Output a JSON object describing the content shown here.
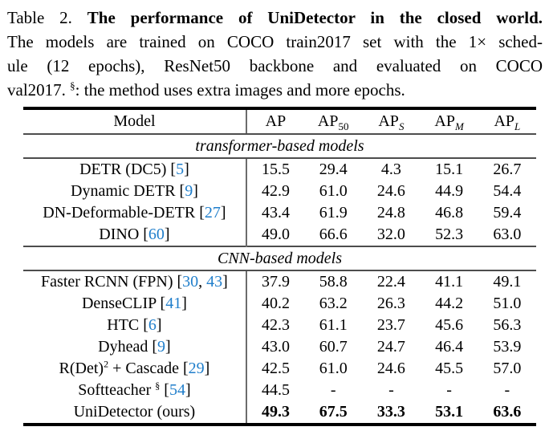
{
  "caption": {
    "label": "Table 2.",
    "title": "The performance of UniDetector in the closed world.",
    "line2": "The models are trained on COCO train2017 set with the 1× sched-",
    "line3": "ule (12 epochs), ResNet50 backbone and evaluated on COCO",
    "line4": {
      "pre": "val2017. ",
      "sup": "§",
      "post": ": the method uses extra images and more epochs."
    }
  },
  "colors": {
    "citation_link": "#1f7ecb",
    "text": "#000000"
  },
  "table": {
    "headers": [
      {
        "base": "Model",
        "sub": ""
      },
      {
        "base": "AP",
        "sub": ""
      },
      {
        "base": "AP",
        "sub": "50"
      },
      {
        "base": "AP",
        "sub": "S"
      },
      {
        "base": "AP",
        "sub": "M"
      },
      {
        "base": "AP",
        "sub": "L"
      }
    ],
    "sections": [
      {
        "title": "transformer-based models",
        "rows": [
          {
            "model": [
              {
                "t": "DETR (DC5) [",
                "k": "text"
              },
              {
                "t": "5",
                "k": "cite"
              },
              {
                "t": "]",
                "k": "text"
              }
            ],
            "values": [
              "15.5",
              "29.4",
              "4.3",
              "15.1",
              "26.7"
            ],
            "bold": false
          },
          {
            "model": [
              {
                "t": "Dynamic DETR [",
                "k": "text"
              },
              {
                "t": "9",
                "k": "cite"
              },
              {
                "t": "]",
                "k": "text"
              }
            ],
            "values": [
              "42.9",
              "61.0",
              "24.6",
              "44.9",
              "54.4"
            ],
            "bold": false
          },
          {
            "model": [
              {
                "t": "DN-Deformable-DETR [",
                "k": "text"
              },
              {
                "t": "27",
                "k": "cite"
              },
              {
                "t": "]",
                "k": "text"
              }
            ],
            "values": [
              "43.4",
              "61.9",
              "24.8",
              "46.8",
              "59.4"
            ],
            "bold": false
          },
          {
            "model": [
              {
                "t": "DINO [",
                "k": "text"
              },
              {
                "t": "60",
                "k": "cite"
              },
              {
                "t": "]",
                "k": "text"
              }
            ],
            "values": [
              "49.0",
              "66.6",
              "32.0",
              "52.3",
              "63.0"
            ],
            "bold": false
          }
        ]
      },
      {
        "title": "CNN-based models",
        "rows": [
          {
            "model": [
              {
                "t": "Faster RCNN (FPN) [",
                "k": "text"
              },
              {
                "t": "30",
                "k": "cite"
              },
              {
                "t": ", ",
                "k": "text"
              },
              {
                "t": "43",
                "k": "cite"
              },
              {
                "t": "]",
                "k": "text"
              }
            ],
            "values": [
              "37.9",
              "58.8",
              "22.4",
              "41.1",
              "49.1"
            ],
            "bold": false
          },
          {
            "model": [
              {
                "t": "DenseCLIP [",
                "k": "text"
              },
              {
                "t": "41",
                "k": "cite"
              },
              {
                "t": "]",
                "k": "text"
              }
            ],
            "values": [
              "40.2",
              "63.2",
              "26.3",
              "44.2",
              "51.0"
            ],
            "bold": false
          },
          {
            "model": [
              {
                "t": "HTC [",
                "k": "text"
              },
              {
                "t": "6",
                "k": "cite"
              },
              {
                "t": "]",
                "k": "text"
              }
            ],
            "values": [
              "42.3",
              "61.1",
              "23.7",
              "45.6",
              "56.3"
            ],
            "bold": false
          },
          {
            "model": [
              {
                "t": "Dyhead [",
                "k": "text"
              },
              {
                "t": "9",
                "k": "cite"
              },
              {
                "t": "]",
                "k": "text"
              }
            ],
            "values": [
              "43.0",
              "60.7",
              "24.7",
              "46.4",
              "53.9"
            ],
            "bold": false
          },
          {
            "model": [
              {
                "t": "R(Det)",
                "k": "text"
              },
              {
                "t": "2",
                "k": "sup"
              },
              {
                "t": " + Cascade [",
                "k": "text"
              },
              {
                "t": "29",
                "k": "cite"
              },
              {
                "t": "]",
                "k": "text"
              }
            ],
            "values": [
              "42.5",
              "61.0",
              "24.6",
              "45.5",
              "57.0"
            ],
            "bold": false
          },
          {
            "model": [
              {
                "t": "Softteacher ",
                "k": "text"
              },
              {
                "t": "§",
                "k": "sup"
              },
              {
                "t": " [",
                "k": "text"
              },
              {
                "t": "54",
                "k": "cite"
              },
              {
                "t": "]",
                "k": "text"
              }
            ],
            "values": [
              "44.5",
              "-",
              "-",
              "-",
              "-"
            ],
            "bold": false
          },
          {
            "model": [
              {
                "t": "UniDetector (ours)",
                "k": "text"
              }
            ],
            "values": [
              "49.3",
              "67.5",
              "33.3",
              "53.1",
              "63.6"
            ],
            "bold": true
          }
        ]
      }
    ]
  }
}
